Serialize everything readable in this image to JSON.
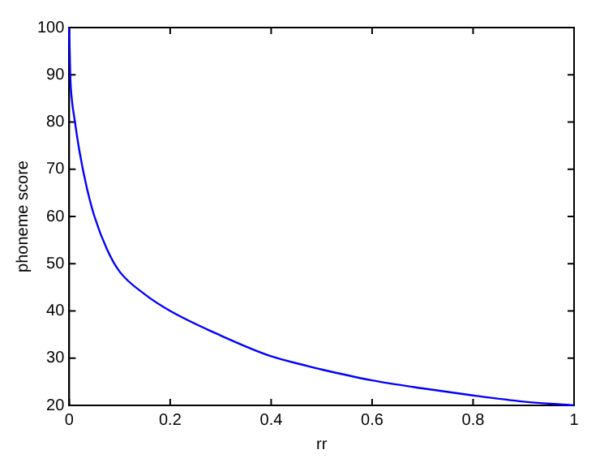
{
  "chart_data": {
    "type": "line",
    "xlabel": "rr",
    "ylabel": "phoneme score",
    "x": [
      0,
      0.002,
      0.005,
      0.01,
      0.02,
      0.035,
      0.05,
      0.075,
      0.1,
      0.15,
      0.2,
      0.3,
      0.4,
      0.47,
      0.5,
      0.6,
      0.7,
      0.8,
      0.9,
      1
    ],
    "series": [
      {
        "color": "#0000ff",
        "values": [
          100,
          90,
          85,
          81,
          74,
          66,
          60,
          53,
          48.3,
          43.5,
          40,
          34.8,
          30.4,
          28.4,
          27.6,
          25.3,
          23.6,
          22.1,
          20.8,
          20
        ]
      }
    ],
    "xlim": [
      0,
      1
    ],
    "xticks": [
      0,
      0.2,
      0.4,
      0.6,
      0.8,
      1
    ],
    "ylim": [
      20,
      100
    ],
    "yticks": [
      20,
      30,
      40,
      50,
      60,
      70,
      80,
      90,
      100
    ],
    "grid": false,
    "legend": false,
    "marker": "none",
    "line_style": "solid"
  }
}
